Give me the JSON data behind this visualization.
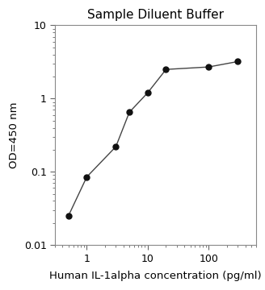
{
  "title": "Sample Diluent Buffer",
  "xlabel": "Human IL-1alpha concentration (pg/ml)",
  "ylabel": "OD=450 nm",
  "x_data": [
    0.5,
    1.0,
    3.0,
    5.0,
    10.0,
    20.0,
    100.0,
    300.0
  ],
  "y_data": [
    0.025,
    0.085,
    0.22,
    0.65,
    1.2,
    2.5,
    2.7,
    3.2
  ],
  "xlim": [
    0.3,
    600
  ],
  "ylim": [
    0.01,
    10
  ],
  "line_color": "#444444",
  "marker_color": "#111111",
  "bg_color": "#ffffff",
  "title_fontsize": 11,
  "label_fontsize": 9.5,
  "tick_fontsize": 9
}
